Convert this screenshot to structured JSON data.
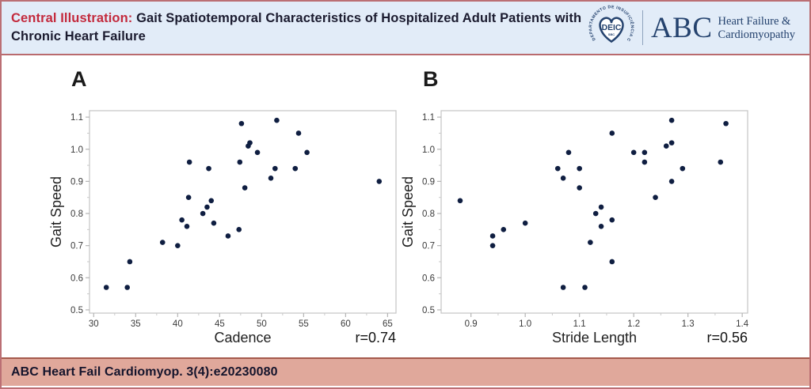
{
  "header": {
    "title_prefix": "Central Illustration:",
    "title_rest": "Gait Spatiotemporal Characteristics of Hospitalized Adult Patients with Chronic Heart Failure",
    "logo": {
      "emblem_ring_text": "DEPARTAMENTO DE INSUFICIÊNCIA CARDÍACA",
      "emblem_center": "DEIC",
      "emblem_sub": "SBC",
      "brand_abbrev": "ABC",
      "brand_name_line1": "Heart Failure &",
      "brand_name_line2": "Cardiomyopathy"
    }
  },
  "chart_data": [
    {
      "type": "scatter",
      "panel_label": "A",
      "xlabel": "Cadence",
      "ylabel": "Gait Speed",
      "annotation": "r=0.74",
      "xlim": [
        29.5,
        66
      ],
      "ylim": [
        0.49,
        1.12
      ],
      "x_tick_values": [
        30,
        35,
        40,
        45,
        50,
        55,
        60,
        65
      ],
      "x_tick_labels": [
        "30",
        "35",
        "40",
        "45",
        "50",
        "55",
        "60",
        "65"
      ],
      "x_minor_ticks": [
        32.5,
        37.5,
        42.5,
        47.5,
        52.5,
        57.5,
        62.5
      ],
      "y_tick_values": [
        0.5,
        0.6,
        0.7,
        0.8,
        0.9,
        1.0,
        1.1
      ],
      "y_tick_labels": [
        "0.5",
        "0.6",
        "0.7",
        "0.8",
        "0.9",
        "1.0",
        "1.1"
      ],
      "y_minor_ticks": [
        0.55,
        0.65,
        0.75,
        0.85,
        0.95,
        1.05
      ],
      "points": [
        [
          31.5,
          0.57
        ],
        [
          34.0,
          0.57
        ],
        [
          34.3,
          0.65
        ],
        [
          38.2,
          0.71
        ],
        [
          40.0,
          0.7
        ],
        [
          40.5,
          0.78
        ],
        [
          41.1,
          0.76
        ],
        [
          41.3,
          0.85
        ],
        [
          41.4,
          0.96
        ],
        [
          43.0,
          0.8
        ],
        [
          43.5,
          0.82
        ],
        [
          43.7,
          0.94
        ],
        [
          44.0,
          0.84
        ],
        [
          44.3,
          0.77
        ],
        [
          46.0,
          0.73
        ],
        [
          47.3,
          0.75
        ],
        [
          47.4,
          0.96
        ],
        [
          47.6,
          1.08
        ],
        [
          48.0,
          0.88
        ],
        [
          48.4,
          1.01
        ],
        [
          48.6,
          1.02
        ],
        [
          49.5,
          0.99
        ],
        [
          51.1,
          0.91
        ],
        [
          51.6,
          0.94
        ],
        [
          51.8,
          1.09
        ],
        [
          54.0,
          0.94
        ],
        [
          54.4,
          1.05
        ],
        [
          55.4,
          0.99
        ],
        [
          64.0,
          0.9
        ]
      ]
    },
    {
      "type": "scatter",
      "panel_label": "B",
      "xlabel": "Stride Length",
      "ylabel": "Gait Speed",
      "annotation": "r=0.56",
      "xlim": [
        0.845,
        1.41
      ],
      "ylim": [
        0.49,
        1.12
      ],
      "x_tick_values": [
        0.9,
        1.0,
        1.1,
        1.2,
        1.3,
        1.4
      ],
      "x_tick_labels": [
        "0.9",
        "1.0",
        "1.1",
        "1.2",
        "1.3",
        "1.4"
      ],
      "x_minor_ticks": [
        0.95,
        1.05,
        1.15,
        1.25,
        1.35
      ],
      "y_tick_values": [
        0.5,
        0.6,
        0.7,
        0.8,
        0.9,
        1.0,
        1.1
      ],
      "y_tick_labels": [
        "0.5",
        "0.6",
        "0.7",
        "0.8",
        "0.9",
        "1.0",
        "1.1"
      ],
      "y_minor_ticks": [
        0.55,
        0.65,
        0.75,
        0.85,
        0.95,
        1.05
      ],
      "points": [
        [
          0.88,
          0.84
        ],
        [
          0.94,
          0.73
        ],
        [
          0.94,
          0.7
        ],
        [
          0.96,
          0.75
        ],
        [
          1.0,
          0.77
        ],
        [
          1.06,
          0.94
        ],
        [
          1.07,
          0.91
        ],
        [
          1.07,
          0.57
        ],
        [
          1.08,
          0.99
        ],
        [
          1.1,
          0.94
        ],
        [
          1.1,
          0.88
        ],
        [
          1.11,
          0.57
        ],
        [
          1.12,
          0.71
        ],
        [
          1.13,
          0.8
        ],
        [
          1.14,
          0.82
        ],
        [
          1.14,
          0.76
        ],
        [
          1.16,
          0.65
        ],
        [
          1.16,
          0.78
        ],
        [
          1.16,
          1.05
        ],
        [
          1.2,
          0.99
        ],
        [
          1.22,
          0.99
        ],
        [
          1.22,
          0.96
        ],
        [
          1.24,
          0.85
        ],
        [
          1.26,
          1.01
        ],
        [
          1.27,
          1.02
        ],
        [
          1.27,
          1.09
        ],
        [
          1.27,
          0.9
        ],
        [
          1.29,
          0.94
        ],
        [
          1.36,
          0.96
        ],
        [
          1.37,
          1.08
        ]
      ]
    }
  ],
  "footer": {
    "citation": "ABC Heart Fail Cardiomyop. 3(4):e20230080"
  },
  "colors": {
    "accent_red": "#c32a3d",
    "navy": "#24426e",
    "header_bg": "#e2ecf8",
    "footer_bg": "#e0a89b",
    "outer_border": "#bb6f74",
    "footer_border": "#a5594c",
    "point": "#0f1e41",
    "frame_gray": "#c4c4c4"
  }
}
